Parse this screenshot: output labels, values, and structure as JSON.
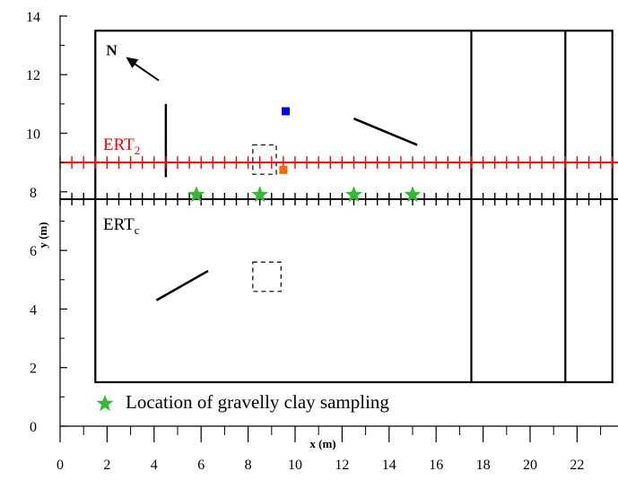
{
  "chart_data": {
    "type": "scatter",
    "xlabel": "x (m)",
    "ylabel": "y (m)",
    "xlim": [
      0,
      23.5
    ],
    "ylim": [
      0,
      14
    ],
    "x_ticks": [
      "0",
      "2",
      "4",
      "6",
      "8",
      "10",
      "12",
      "14",
      "16",
      "18",
      "20",
      "22"
    ],
    "y_ticks": [
      "0",
      "2",
      "4",
      "6",
      "8",
      "10",
      "12",
      "14"
    ],
    "north_label": "N",
    "north_arrow": {
      "from": [
        4.2,
        11.8
      ],
      "to": [
        2.8,
        12.6
      ]
    },
    "site_boundary": {
      "x": [
        1.5,
        23.5
      ],
      "y": [
        1.5,
        13.5
      ]
    },
    "vertical_dividers": [
      17.5,
      21.5
    ],
    "profiles": [
      {
        "name": "ERT",
        "subscript": "2",
        "color": "#ff0000",
        "y": 9.0,
        "x_range": [
          0,
          23.5
        ],
        "tick_spacing": 0.5
      },
      {
        "name": "ERT",
        "subscript": "c",
        "color": "#000000",
        "y": 7.75,
        "x_range": [
          0,
          23.5
        ],
        "tick_spacing": 0.5
      }
    ],
    "gravelly_clay_samples": {
      "color": "#33bb33",
      "x": [
        5.8,
        8.5,
        12.5,
        15.0
      ],
      "y": [
        7.9,
        7.9,
        7.9,
        7.9
      ]
    },
    "point_markers": [
      {
        "color": "#0000ff",
        "x": 9.6,
        "y": 10.75
      },
      {
        "color": "#ff6600",
        "x": 9.5,
        "y": 8.75
      }
    ],
    "line_features": [
      {
        "x": [
          4.5,
          4.5
        ],
        "y": [
          8.5,
          11.0
        ]
      },
      {
        "x": [
          12.5,
          15.2
        ],
        "y": [
          10.5,
          9.6
        ]
      },
      {
        "x": [
          4.1,
          6.3
        ],
        "y": [
          4.3,
          5.3
        ]
      }
    ],
    "dashed_boxes": [
      {
        "x": [
          8.2,
          9.2
        ],
        "y": [
          8.6,
          9.6
        ]
      },
      {
        "x": [
          8.2,
          9.4
        ],
        "y": [
          4.6,
          5.6
        ]
      }
    ],
    "legend": {
      "label": "Location of gravelly clay sampling",
      "color": "#33bb33",
      "position": "bottom-left"
    }
  }
}
